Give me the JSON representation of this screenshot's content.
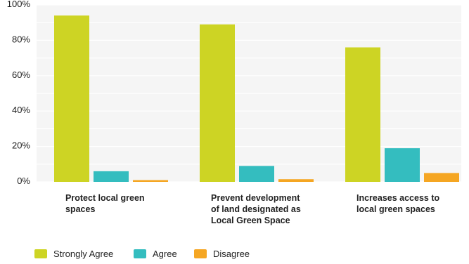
{
  "chart_data": {
    "type": "bar",
    "categories": [
      [
        "Protect local green",
        "spaces"
      ],
      [
        "Prevent development",
        "of land designated as",
        "Local Green Space"
      ],
      [
        "Increases access to",
        "local green spaces"
      ]
    ],
    "series": [
      {
        "name": "Strongly Agree",
        "color": "#cdd424",
        "values": [
          94,
          89,
          76
        ]
      },
      {
        "name": "Agree",
        "color": "#34bdbf",
        "values": [
          6,
          9,
          19
        ]
      },
      {
        "name": "Disagree",
        "color": "#f5a623",
        "values": [
          1,
          1.5,
          5
        ]
      }
    ],
    "yticks": [
      "0%",
      "20%",
      "40%",
      "60%",
      "80%",
      "100%"
    ],
    "ylim": [
      0,
      100
    ],
    "grid": true,
    "legend_position": "bottom-left",
    "plot_background": "#f5f5f5",
    "grid_color": "#ffffff"
  }
}
